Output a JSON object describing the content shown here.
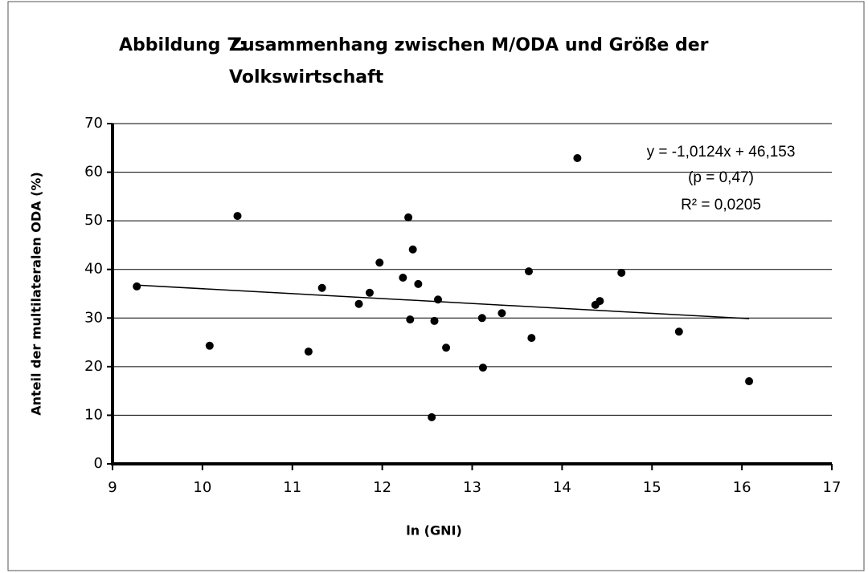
{
  "chart_data": {
    "type": "scatter",
    "title_label": "Abbildung 7:",
    "title": [
      "Zusammenhang zwischen M/ODA und Größe der",
      "Volkswirtschaft"
    ],
    "xlabel": "ln (GNI)",
    "ylabel": "Anteil der multilateralen ODA (%)",
    "annotation": [
      "y = -1,0124x + 46,153",
      "(p = 0,47)",
      "R² = 0,0205"
    ],
    "trendline": {
      "slope": -1.0124,
      "intercept": 46.153
    },
    "color": "#000000",
    "x": [
      9.27,
      10.08,
      10.39,
      11.18,
      11.33,
      11.74,
      11.86,
      11.97,
      12.29,
      12.23,
      12.31,
      12.34,
      12.4,
      12.55,
      12.58,
      12.62,
      12.71,
      13.11,
      13.12,
      13.33,
      13.63,
      13.66,
      14.17,
      14.37,
      14.42,
      14.66,
      15.3,
      16.08
    ],
    "values": [
      36.5,
      24.3,
      51.0,
      23.1,
      36.2,
      32.9,
      35.2,
      41.4,
      50.7,
      38.3,
      29.7,
      44.1,
      37.0,
      9.6,
      29.4,
      33.8,
      23.9,
      30.0,
      19.8,
      31.0,
      39.6,
      25.9,
      62.9,
      32.7,
      33.5,
      39.3,
      27.2,
      17.0
    ],
    "xlim": [
      9,
      17
    ],
    "xticks": [
      9,
      10,
      11,
      12,
      13,
      14,
      15,
      16,
      17
    ],
    "ylim": [
      0,
      70
    ],
    "yticks": [
      0,
      10,
      20,
      30,
      40,
      50,
      60,
      70
    ],
    "grid": true
  }
}
